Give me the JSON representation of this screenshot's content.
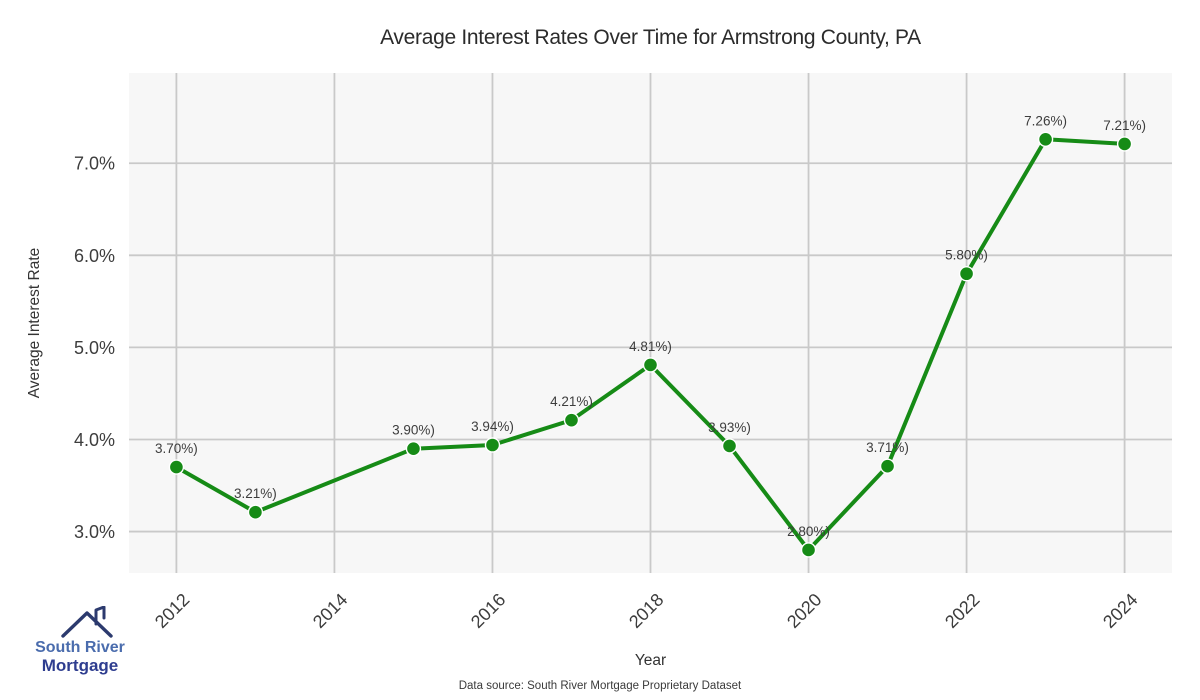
{
  "title": "Average Interest Rates Over Time for Armstrong County, PA",
  "chart_data": {
    "type": "line",
    "title": "Average Interest Rates Over Time for Armstrong County, PA",
    "xlabel": "Year",
    "ylabel": "Average Interest Rate",
    "x": [
      2012,
      2013,
      2015,
      2016,
      2017,
      2018,
      2019,
      2020,
      2021,
      2022,
      2023,
      2024
    ],
    "values": [
      3.7,
      3.21,
      3.9,
      3.94,
      4.21,
      4.81,
      3.93,
      2.8,
      3.71,
      5.8,
      7.26,
      7.21
    ],
    "point_labels": [
      "3.70%)",
      "3.21%)",
      "3.90%)",
      "3.94%)",
      "4.21%)",
      "4.81%)",
      "3.93%)",
      "2.80%)",
      "3.71%)",
      "5.80%)",
      "7.26%)",
      "7.21%)"
    ],
    "x_ticks": [
      2012,
      2014,
      2016,
      2018,
      2020,
      2022,
      2024
    ],
    "y_ticks": [
      "3.0%",
      "4.0%",
      "5.0%",
      "6.0%",
      "7.0%"
    ],
    "y_tick_values": [
      3.0,
      4.0,
      5.0,
      6.0,
      7.0
    ],
    "xlim": [
      2011.4,
      2024.6
    ],
    "ylim": [
      2.55,
      7.98
    ],
    "grid": true,
    "legend": "none",
    "line_color": "#168b16",
    "marker_edge_color": "#ffffff",
    "plot_bg_color": "#f7f7f7",
    "grid_color": "#c9c9c9",
    "tick_color": "#3d3d3d",
    "label_color": "#3d3d3d"
  },
  "footer": {
    "source": "Data source: South River Mortgage Proprietary Dataset"
  },
  "logo": {
    "line1": "South River",
    "line2": "Mortgage",
    "color1": "#4a6cad",
    "color2": "#2e3d8f",
    "roof_color": "#2c3a6e"
  }
}
